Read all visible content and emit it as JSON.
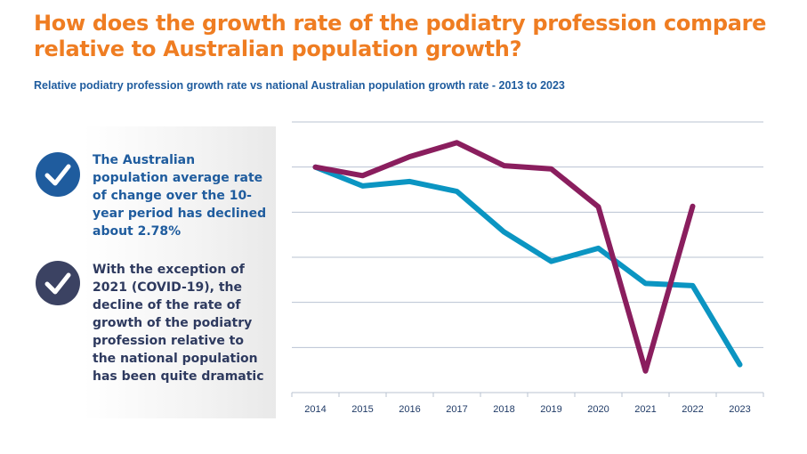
{
  "header": {
    "title": "How does the growth rate of the podiatry profession compare relative to Australian population growth?",
    "subtitle": "Relative podiatry profession growth rate vs national Australian population growth rate - 2013 to 2023"
  },
  "points": [
    {
      "icon": "checkmark-circle-icon",
      "color": "#1f5c9e",
      "text": "The Australian population average rate of change over the 10-year period has declined about 2.78%"
    },
    {
      "icon": "checkmark-circle-icon",
      "color": "#3b4262",
      "text": "With the exception of 2021 (COVID-19), the decline of the rate of growth of the podiatry profession relative to the national population has been quite dramatic"
    }
  ],
  "chart_data": {
    "type": "line",
    "categories": [
      "2014",
      "2015",
      "2016",
      "2017",
      "2018",
      "2019",
      "2020",
      "2021",
      "2022",
      "2023"
    ],
    "ylim": [
      0,
      6
    ],
    "y_ticks": [
      0,
      1,
      2,
      3,
      4,
      5,
      6
    ],
    "y_tick_labels_shown": false,
    "grid": true,
    "series": [
      {
        "color": "#0b95c2",
        "values": [
          5.0,
          4.58,
          4.68,
          4.46,
          3.56,
          2.91,
          3.2,
          2.42,
          2.37,
          0.62
        ]
      },
      {
        "color": "#8a1e5e",
        "values": [
          5.0,
          4.81,
          5.23,
          5.54,
          5.03,
          4.96,
          4.12,
          0.48,
          4.13,
          null
        ]
      }
    ]
  }
}
